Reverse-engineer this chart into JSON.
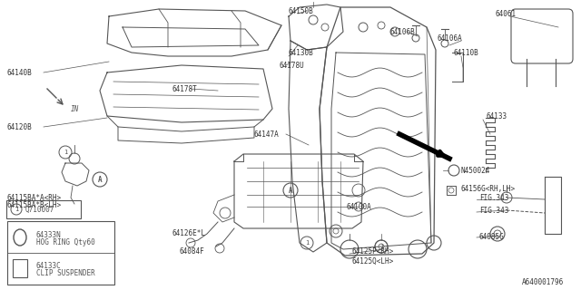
{
  "bg_color": "#ffffff",
  "line_color": "#555555",
  "part_number_color": "#333333",
  "diagram_id": "A640001796",
  "torque_spec": "Q710007",
  "legend_items": [
    {
      "code": "64333N",
      "line1": "64333N",
      "line2": "HOG RING Qty60"
    },
    {
      "code": "64133C",
      "line1": "64133C",
      "line2": "CLIP SUSPENDER"
    }
  ]
}
